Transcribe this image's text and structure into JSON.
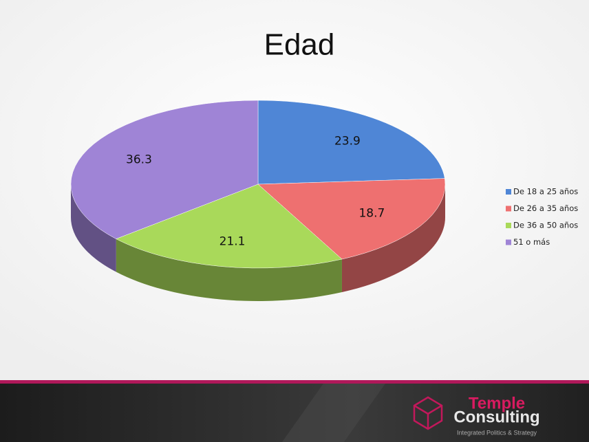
{
  "chart_data": {
    "type": "pie",
    "title": "Edad",
    "categories": [
      "De 18 a 25 años",
      "De 26 a 35 años",
      "De 36 a 50 años",
      "51 o más"
    ],
    "values": [
      23.9,
      18.7,
      21.1,
      36.3
    ],
    "colors": [
      "#4f86d6",
      "#ee7070",
      "#a9d95a",
      "#9f84d6"
    ],
    "legend": "right"
  },
  "footer": {
    "brand_top": "Temple",
    "brand_bottom": "Consulting",
    "tagline": "Integrated Politics & Strategy"
  }
}
